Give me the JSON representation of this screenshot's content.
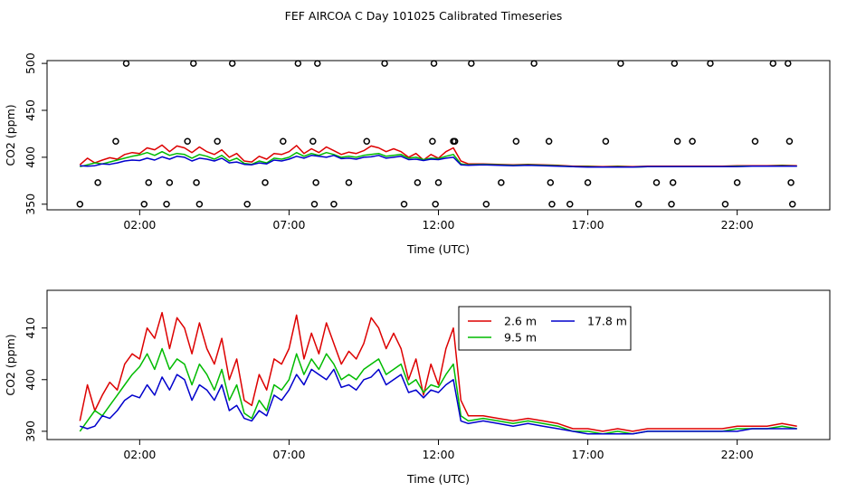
{
  "page": {
    "title": "FEF AIRCOA C  Day 101025  Calibrated Timeseries"
  },
  "colors": {
    "s1": "#dd0000",
    "s2": "#00bb00",
    "s3": "#0000cc",
    "axis": "#000000"
  },
  "chart_data": [
    {
      "type": "scatter+line",
      "title": "FEF AIRCOA C  Day 101025  Calibrated Timeseries",
      "xlabel": "Time (UTC)",
      "ylabel": "CO2 (ppm)",
      "xlim": [
        -1.1,
        25.1
      ],
      "ylim": [
        344,
        503
      ],
      "xticks": [
        2,
        7,
        12,
        17,
        22
      ],
      "xtick_labels": [
        "02:00",
        "07:00",
        "12:00",
        "17:00",
        "22:00"
      ],
      "yticks": [
        350,
        400,
        450,
        500
      ],
      "ytick_labels": [
        "350",
        "400",
        "450",
        "500"
      ],
      "calibration_points": {
        "name": "calibration",
        "x": [
          0.0,
          0.6,
          1.2,
          1.55,
          2.15,
          2.3,
          2.9,
          3.0,
          3.6,
          3.8,
          3.9,
          4.0,
          4.6,
          5.1,
          5.6,
          6.2,
          6.8,
          7.3,
          7.8,
          7.85,
          7.9,
          7.95,
          8.5,
          9.0,
          9.6,
          10.2,
          10.85,
          11.3,
          11.8,
          11.85,
          11.9,
          12.0,
          12.5,
          12.55,
          13.1,
          13.6,
          14.1,
          14.6,
          15.2,
          15.7,
          15.75,
          15.8,
          16.4,
          17.0,
          17.6,
          18.1,
          18.7,
          19.3,
          19.8,
          19.85,
          19.9,
          20.0,
          20.5,
          21.1,
          21.6,
          22.0,
          22.6,
          23.2,
          23.7,
          23.75,
          23.8,
          23.85
        ],
        "y": [
          350,
          373,
          417,
          500,
          350,
          373,
          350,
          373,
          417,
          500,
          373,
          350,
          417,
          500,
          350,
          373,
          417,
          500,
          417,
          350,
          373,
          500,
          350,
          373,
          417,
          500,
          350,
          373,
          417,
          500,
          350,
          373,
          417,
          417,
          500,
          350,
          373,
          417,
          500,
          417,
          373,
          350,
          350,
          373,
          417,
          500,
          350,
          373,
          350,
          373,
          500,
          417,
          417,
          500,
          350,
          373,
          417,
          500,
          500,
          417,
          373,
          350
        ]
      }
    },
    {
      "type": "line",
      "xlabel": "Time (UTC)",
      "ylabel": "CO2 (ppm)",
      "xlim": [
        -1.1,
        25.1
      ],
      "ylim": [
        388.4,
        417.3
      ],
      "xticks": [
        2,
        7,
        12,
        17,
        22
      ],
      "xtick_labels": [
        "02:00",
        "07:00",
        "12:00",
        "17:00",
        "22:00"
      ],
      "yticks": [
        390,
        400,
        410
      ],
      "ytick_labels": [
        "390",
        "400",
        "410"
      ],
      "legend": {
        "position": "top-right-inside"
      },
      "x": [
        0.0,
        0.25,
        0.5,
        0.75,
        1.0,
        1.25,
        1.5,
        1.75,
        2.0,
        2.25,
        2.5,
        2.75,
        3.0,
        3.25,
        3.5,
        3.75,
        4.0,
        4.25,
        4.5,
        4.75,
        5.0,
        5.25,
        5.5,
        5.75,
        6.0,
        6.25,
        6.5,
        6.75,
        7.0,
        7.25,
        7.5,
        7.75,
        8.0,
        8.25,
        8.5,
        8.75,
        9.0,
        9.25,
        9.5,
        9.75,
        10.0,
        10.25,
        10.5,
        10.75,
        11.0,
        11.25,
        11.5,
        11.75,
        12.0,
        12.25,
        12.5,
        12.75,
        13.0,
        13.5,
        14.0,
        14.5,
        15.0,
        15.5,
        16.0,
        16.5,
        17.0,
        17.5,
        18.0,
        18.5,
        19.0,
        19.5,
        20.0,
        20.5,
        21.0,
        21.5,
        22.0,
        22.5,
        23.0,
        23.5,
        24.0
      ],
      "series": [
        {
          "name": "2.6 m",
          "values": [
            392.0,
            399.0,
            394.0,
            397.0,
            399.5,
            398.0,
            403.0,
            405.0,
            404.0,
            410.0,
            408.0,
            413.0,
            406.0,
            412.0,
            410.0,
            405.0,
            411.0,
            406.0,
            403.0,
            408.0,
            400.0,
            404.0,
            396.0,
            395.0,
            401.0,
            398.0,
            404.0,
            403.0,
            406.0,
            412.5,
            404.0,
            409.0,
            405.0,
            411.0,
            407.0,
            403.0,
            405.5,
            404.0,
            407.0,
            412.0,
            410.0,
            406.0,
            409.0,
            406.0,
            400.0,
            404.0,
            397.0,
            403.0,
            399.0,
            406.0,
            410.0,
            396.0,
            393.0,
            393.0,
            392.5,
            392.0,
            392.5,
            392.0,
            391.5,
            390.5,
            390.5,
            390.0,
            390.5,
            390.0,
            390.5,
            390.5,
            390.5,
            390.5,
            390.5,
            390.5,
            391.0,
            391.0,
            391.0,
            391.5,
            391.0
          ]
        },
        {
          "name": "9.5 m",
          "values": [
            390.0,
            392.0,
            394.0,
            393.0,
            395.0,
            397.0,
            399.0,
            401.0,
            402.5,
            405.0,
            402.0,
            406.0,
            402.0,
            404.0,
            403.0,
            399.0,
            403.0,
            401.0,
            398.0,
            402.0,
            396.0,
            399.0,
            393.5,
            392.5,
            396.0,
            394.0,
            399.0,
            398.0,
            400.0,
            405.0,
            401.0,
            404.0,
            402.0,
            405.0,
            403.0,
            400.0,
            401.0,
            400.0,
            402.0,
            403.0,
            404.0,
            401.0,
            402.0,
            403.0,
            399.0,
            400.0,
            397.5,
            399.0,
            398.5,
            401.0,
            403.0,
            393.0,
            392.0,
            392.5,
            392.0,
            391.5,
            392.0,
            391.5,
            391.0,
            390.0,
            390.0,
            389.5,
            390.0,
            389.5,
            390.0,
            390.0,
            390.0,
            390.0,
            390.0,
            390.0,
            390.5,
            390.5,
            390.5,
            391.0,
            390.5
          ]
        },
        {
          "name": "17.8 m",
          "values": [
            391.0,
            390.5,
            391.0,
            393.0,
            392.5,
            394.0,
            396.0,
            397.0,
            396.5,
            399.0,
            397.0,
            400.5,
            398.0,
            401.0,
            400.0,
            396.0,
            399.0,
            398.0,
            396.0,
            399.0,
            394.0,
            395.0,
            392.5,
            392.0,
            394.0,
            393.0,
            397.0,
            396.0,
            398.0,
            401.0,
            399.0,
            402.0,
            401.0,
            400.0,
            402.0,
            398.5,
            399.0,
            398.0,
            400.0,
            400.5,
            402.0,
            399.0,
            400.0,
            401.0,
            397.5,
            398.0,
            396.5,
            398.0,
            397.5,
            399.0,
            400.0,
            392.0,
            391.5,
            392.0,
            391.5,
            391.0,
            391.5,
            391.0,
            390.5,
            390.0,
            389.5,
            389.5,
            389.5,
            389.5,
            390.0,
            390.0,
            390.0,
            390.0,
            390.0,
            390.0,
            390.0,
            390.5,
            390.5,
            390.5,
            390.5
          ]
        }
      ]
    }
  ]
}
